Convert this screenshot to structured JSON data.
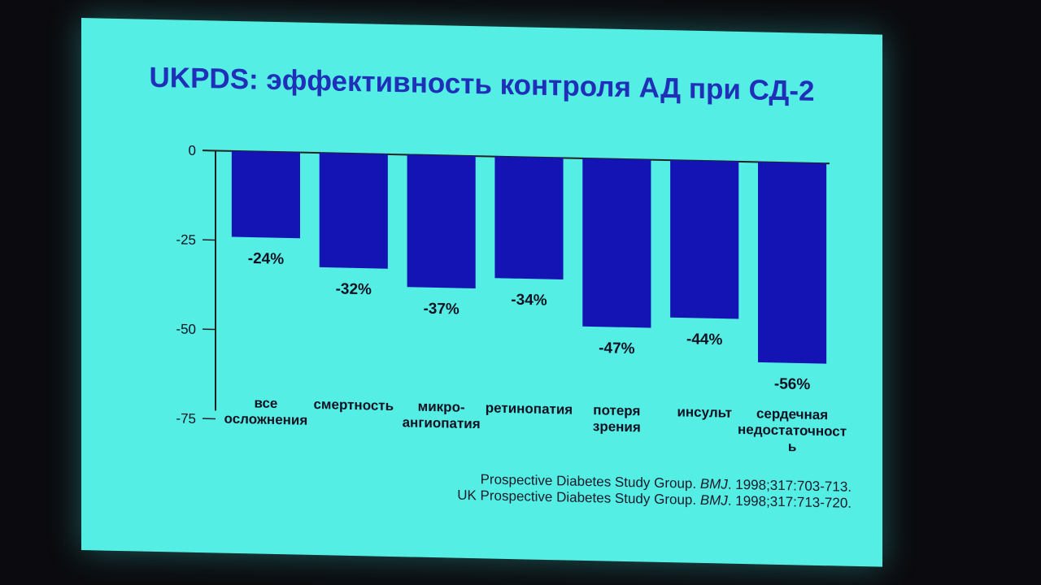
{
  "slide": {
    "title": "UKPDS: эффективность контроля АД при СД-2",
    "citations": [
      {
        "before": "Prospective Diabetes Study Group. ",
        "journal": "BMJ",
        "after": ". 1998;317:703-713."
      },
      {
        "before": "UK Prospective Diabetes Study Group. ",
        "journal": "BMJ",
        "after": ". 1998;317:713-720."
      }
    ]
  },
  "colors": {
    "bar": "#1414b4",
    "background": "#54eee4",
    "title": "#1f2fb8"
  },
  "chart_data": {
    "type": "bar",
    "categories": [
      [
        "все",
        "осложнения"
      ],
      [
        "смертность"
      ],
      [
        "микро-",
        "ангиопатия"
      ],
      [
        "ретинопатия"
      ],
      [
        "потеря",
        "зрения"
      ],
      [
        "инсульт"
      ],
      [
        "сердечная",
        "недостаточност",
        "ь"
      ]
    ],
    "values": [
      -24,
      -32,
      -37,
      -34,
      -47,
      -44,
      -56
    ],
    "value_labels": [
      "-24%",
      "-32%",
      "-37%",
      "-34%",
      "-47%",
      "-44%",
      "-56%"
    ],
    "yticks": [
      0,
      -25,
      -50,
      -75
    ],
    "ylim": [
      -75,
      0
    ],
    "grid": false,
    "legend": "none"
  }
}
